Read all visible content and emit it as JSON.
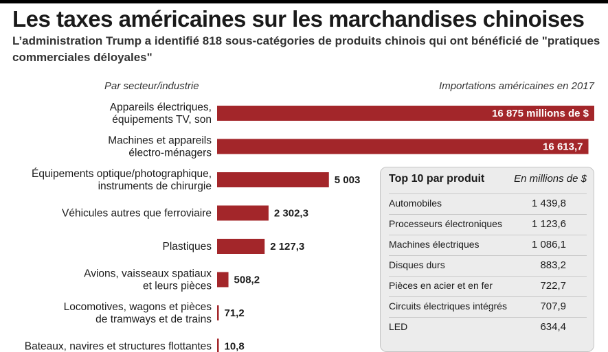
{
  "header": {
    "title": "Les taxes américaines sur les marchandises chinoises",
    "subtitle": "L’administration Trump a identifié 818 sous-catégories de produits chinois qui ont bénéficié de \"pratiques commerciales déloyales\"",
    "left_label": "Par secteur/industrie",
    "right_label": "Importations américaines en 2017"
  },
  "colors": {
    "bar": "#a3262a",
    "text": "#1a1a1a"
  },
  "chart_data": {
    "type": "bar",
    "orientation": "horizontal",
    "title": "Les taxes américaines sur les marchandises chinoises",
    "xlabel": "Importations américaines en 2017",
    "ylabel": "Par secteur/industrie",
    "unit": "millions de $",
    "categories": [
      [
        "Appareils électriques,",
        "équipements TV, son"
      ],
      [
        "Machines et appareils",
        "électro-ménagers"
      ],
      [
        "Équipements optique/photographique,",
        "instruments de chirurgie"
      ],
      [
        "Véhicules autres que ferroviaire"
      ],
      [
        "Plastiques"
      ],
      [
        "Avions, vaisseaux spatiaux",
        "et leurs pièces"
      ],
      [
        "Locomotives, wagons et pièces",
        "de tramways et de trains"
      ],
      [
        "Bateaux, navires et structures flottantes"
      ]
    ],
    "values": [
      16875,
      16613.7,
      5003,
      2302.3,
      2127.3,
      508.2,
      71.2,
      10.8
    ],
    "value_labels": [
      "16 875 millions de $",
      "16 613,7",
      "5 003",
      "2 302,3",
      "2 127,3",
      "508,2",
      "71,2",
      "10,8"
    ],
    "xlim": [
      0,
      16875
    ],
    "grid": false,
    "legend": "none"
  },
  "top10": {
    "title": "Top 10 par produit",
    "unit": "En millions de $",
    "rows": [
      {
        "name": "Automobiles",
        "value": "1 439,8"
      },
      {
        "name": "Processeurs électroniques",
        "value": "1 123,6"
      },
      {
        "name": "Machines électriques",
        "value": "1 086,1"
      },
      {
        "name": "Disques durs",
        "value": "883,2"
      },
      {
        "name": "Pièces en acier et en fer",
        "value": "722,7"
      },
      {
        "name": "Circuits électriques intégrés",
        "value": "707,9"
      },
      {
        "name": "LED",
        "value": "634,4"
      }
    ]
  }
}
